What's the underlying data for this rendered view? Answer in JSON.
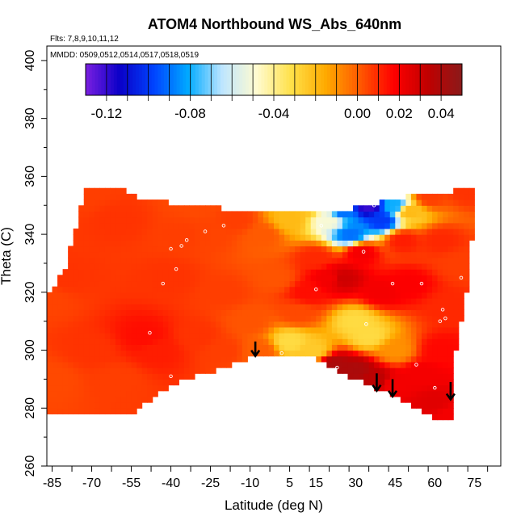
{
  "chart_data": {
    "type": "heatmap",
    "title": "ATOM4 Northbound WS_Abs_640nm",
    "xlabel": "Latitude (deg N)",
    "ylabel": "Theta (C)",
    "xlim": [
      -87,
      85
    ],
    "ylim": [
      260,
      405
    ],
    "x_ticks": [
      -85,
      -70,
      -55,
      -40,
      -25,
      -10,
      5,
      15,
      30,
      45,
      60,
      75
    ],
    "y_ticks": [
      260,
      280,
      300,
      320,
      340,
      360,
      380,
      400
    ],
    "flights_label": "Flts: 7,8,9,10,11,12",
    "dates_label": "MMDD: 0509,0512,0514,0517,0518,0519",
    "colorbar": {
      "range": [
        -0.13,
        0.05
      ],
      "tick_values": [
        -0.12,
        -0.08,
        -0.04,
        0.0,
        0.02,
        0.04
      ],
      "tick_labels": [
        "-0.12",
        "-0.08",
        "-0.04",
        "0.00",
        "0.02",
        "0.04"
      ],
      "colors": [
        "#7a1fe0",
        "#0a00c8",
        "#0044ff",
        "#00aaff",
        "#bfe6ff",
        "#fffbd0",
        "#ffe14a",
        "#ffab00",
        "#ff5a00",
        "#ff0000",
        "#c00000",
        "#8b1a1a"
      ]
    },
    "boundary": [
      [
        -87,
        284
      ],
      [
        -87,
        318
      ],
      [
        -80,
        328
      ],
      [
        -72,
        356
      ],
      [
        -62,
        357
      ],
      [
        -50,
        352
      ],
      [
        -30,
        350
      ],
      [
        -10,
        348
      ],
      [
        20,
        347
      ],
      [
        50,
        353
      ],
      [
        76,
        356
      ],
      [
        72,
        320
      ],
      [
        68,
        300
      ],
      [
        67,
        282
      ],
      [
        66,
        275
      ],
      [
        60,
        276
      ],
      [
        50,
        282
      ],
      [
        40,
        286
      ],
      [
        25,
        292
      ],
      [
        15,
        297
      ],
      [
        8,
        299
      ],
      [
        -5,
        299
      ],
      [
        -20,
        294
      ],
      [
        -40,
        288
      ],
      [
        -55,
        278
      ],
      [
        -87,
        278
      ]
    ],
    "anchors": [
      [
        -87,
        318,
        0.005
      ],
      [
        -80,
        325,
        0.008
      ],
      [
        -72,
        354,
        0.006
      ],
      [
        -60,
        345,
        0.008
      ],
      [
        -70,
        300,
        0.008
      ],
      [
        -50,
        305,
        0.015
      ],
      [
        -60,
        290,
        0.006
      ],
      [
        -85,
        290,
        0.004
      ],
      [
        -45,
        300,
        0.012
      ],
      [
        -40,
        325,
        0.008
      ],
      [
        -35,
        340,
        0.006
      ],
      [
        -25,
        340,
        0.005
      ],
      [
        -20,
        320,
        0.006
      ],
      [
        -30,
        305,
        0.008
      ],
      [
        -30,
        350,
        0.004
      ],
      [
        -15,
        345,
        0.006
      ],
      [
        -20,
        300,
        0.006
      ],
      [
        -10,
        310,
        0.002
      ],
      [
        -6,
        300,
        0.0
      ],
      [
        -5,
        340,
        0.001
      ],
      [
        0,
        325,
        0.002
      ],
      [
        5,
        345,
        -0.02
      ],
      [
        5,
        303,
        -0.03
      ],
      [
        12,
        350,
        -0.02
      ],
      [
        12,
        320,
        0.015
      ],
      [
        15,
        332,
        0.01
      ],
      [
        14,
        300,
        -0.025
      ],
      [
        20,
        345,
        -0.05
      ],
      [
        20,
        325,
        0.02
      ],
      [
        25,
        348,
        -0.09
      ],
      [
        28,
        340,
        -0.09
      ],
      [
        35,
        350,
        -0.12
      ],
      [
        40,
        345,
        -0.1
      ],
      [
        45,
        350,
        -0.08
      ],
      [
        50,
        348,
        -0.02
      ],
      [
        58,
        353,
        0.006
      ],
      [
        72,
        355,
        0.008
      ],
      [
        32,
        334,
        0.02
      ],
      [
        25,
        325,
        0.03
      ],
      [
        40,
        320,
        0.02
      ],
      [
        50,
        323,
        0.018
      ],
      [
        30,
        310,
        -0.03
      ],
      [
        35,
        305,
        -0.03
      ],
      [
        45,
        300,
        -0.01
      ],
      [
        22,
        295,
        0.04
      ],
      [
        30,
        293,
        0.04
      ],
      [
        37,
        290,
        0.035
      ],
      [
        45,
        288,
        0.02
      ],
      [
        55,
        292,
        0.02
      ],
      [
        60,
        282,
        0.025
      ],
      [
        62,
        300,
        0.016
      ],
      [
        65,
        315,
        0.01
      ],
      [
        70,
        330,
        0.006
      ],
      [
        66,
        278,
        0.02
      ],
      [
        48,
        338,
        0.012
      ],
      [
        62,
        338,
        0.01
      ],
      [
        8,
        313,
        0.004
      ]
    ],
    "sample_points": [
      [
        -85,
        323
      ],
      [
        -48,
        306
      ],
      [
        -43,
        323
      ],
      [
        -40,
        335
      ],
      [
        -38,
        328
      ],
      [
        -36,
        336
      ],
      [
        -34,
        338
      ],
      [
        -27,
        341
      ],
      [
        -20,
        343
      ],
      [
        -40,
        291
      ],
      [
        2,
        299
      ],
      [
        17,
        343
      ],
      [
        15,
        321
      ],
      [
        23,
        294
      ],
      [
        33,
        334
      ],
      [
        34,
        309
      ],
      [
        37,
        350
      ],
      [
        44,
        323
      ],
      [
        53,
        295
      ],
      [
        55,
        323
      ],
      [
        60,
        287
      ],
      [
        62,
        310
      ],
      [
        63,
        314
      ],
      [
        64,
        311
      ],
      [
        70,
        325
      ]
    ],
    "arrows": [
      [
        -8,
        303,
        298
      ],
      [
        38,
        292,
        286
      ],
      [
        44,
        290,
        284
      ],
      [
        66,
        289,
        283
      ]
    ]
  }
}
